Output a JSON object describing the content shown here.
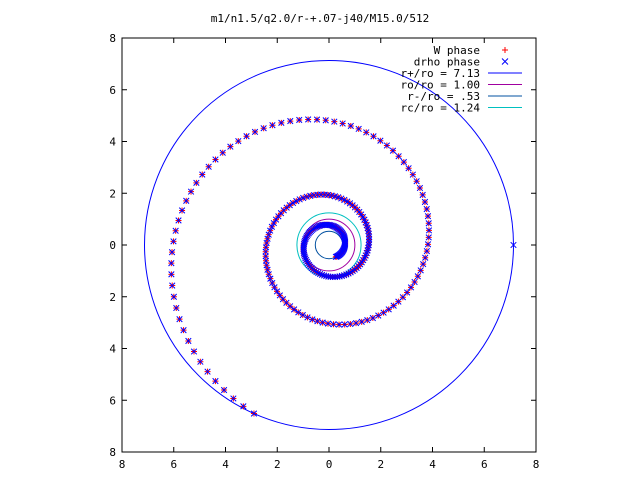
{
  "chart_data": {
    "type": "scatter",
    "title": "m1/n1.5/q2.0/r-+.07-j40/M15.0/512",
    "xlabel": "",
    "ylabel": "",
    "xlim": [
      -8,
      8
    ],
    "ylim": [
      -8,
      8
    ],
    "xticks": [
      -8,
      -6,
      -4,
      -2,
      0,
      2,
      4,
      6,
      8
    ],
    "yticks": [
      -8,
      -6,
      -4,
      -2,
      0,
      2,
      4,
      6,
      8
    ],
    "x_tick_labels": [
      "8",
      "6",
      "4",
      "2",
      "0",
      "2",
      "4",
      "6",
      "8"
    ],
    "y_tick_labels": [
      "8",
      "6",
      "4",
      "2",
      "0",
      "2",
      "4",
      "6",
      "8"
    ],
    "grid": false,
    "legend_position": "top-right",
    "legend": [
      {
        "label": "W phase",
        "marker": "+",
        "color": "#ff0000"
      },
      {
        "label": "drho phase",
        "marker": "x",
        "color": "#0000ff"
      },
      {
        "label": "r+/ro = 7.13",
        "line": true,
        "color": "#0000ff"
      },
      {
        "label": "ro/ro = 1.00",
        "line": true,
        "color": "#a000a0"
      },
      {
        "label": "r-/ro = .53",
        "line": true,
        "color": "#0050a0"
      },
      {
        "label": "rc/ro = 1.24",
        "line": true,
        "color": "#00c0c0"
      }
    ],
    "circles": [
      {
        "name": "r+/ro = 7.13",
        "r": 7.13,
        "color": "#0000ff"
      },
      {
        "name": "ro/ro = 1.00",
        "r": 1.0,
        "color": "#a000a0"
      },
      {
        "name": "r-/ro = .53",
        "r": 0.53,
        "color": "#0050a0"
      },
      {
        "name": "rc/ro = 1.24",
        "r": 1.24,
        "color": "#00c0c0"
      }
    ],
    "series": [
      {
        "name": "W phase",
        "marker": "+",
        "color": "#ff0000",
        "spiral": {
          "r_start": 0.53,
          "r_end": 7.13,
          "theta_start_deg": -60,
          "turns": 2.85,
          "points": 260
        }
      },
      {
        "name": "drho phase",
        "marker": "x",
        "color": "#0000ff",
        "spiral": {
          "r_start": 0.53,
          "r_end": 7.13,
          "theta_start_deg": -60,
          "turns": 2.85,
          "points": 260
        },
        "outlier": [
          7.13,
          0
        ]
      }
    ]
  }
}
